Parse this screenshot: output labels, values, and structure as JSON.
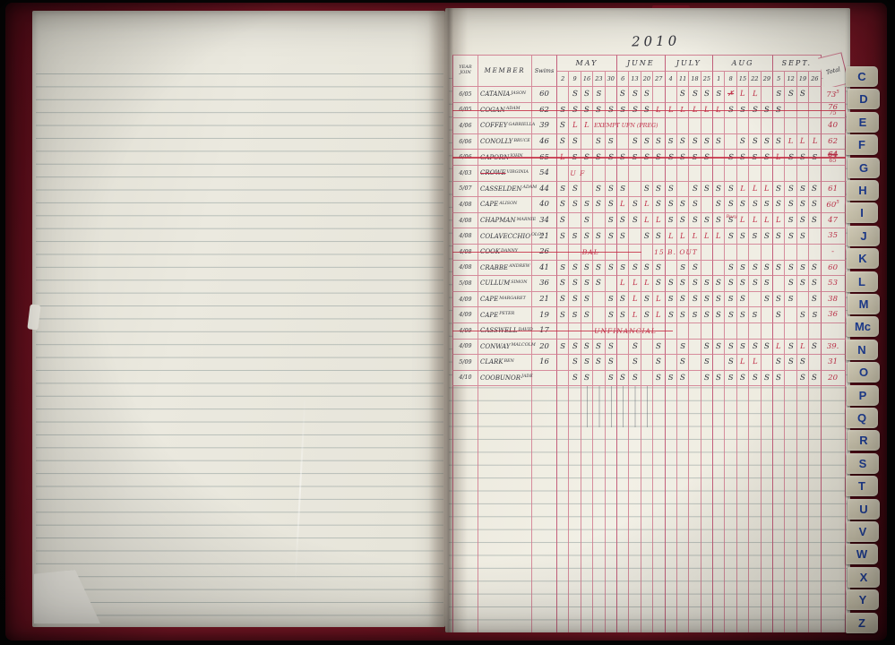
{
  "year_title": "2010",
  "ledger": {
    "col_headers": {
      "year_join_line1": "YEAR",
      "year_join_line2": "JOIN",
      "member": "MEMBER",
      "swims": "Swims",
      "total": "Total"
    },
    "months": [
      {
        "label": "MAY",
        "dates": [
          "2",
          "9",
          "16",
          "23",
          "30"
        ]
      },
      {
        "label": "JUNE",
        "dates": [
          "6",
          "13",
          "20",
          "27"
        ]
      },
      {
        "label": "JULY",
        "dates": [
          "4",
          "11",
          "18",
          "25"
        ]
      },
      {
        "label": "AUG",
        "dates": [
          "1",
          "8",
          "15",
          "22",
          "29"
        ]
      },
      {
        "label": "SEPT.",
        "dates": [
          "5",
          "12",
          "19",
          "26"
        ]
      }
    ],
    "ink_colors": {
      "pen": "#33343c",
      "red_ink": "#c1334b",
      "grid_pink": "#d17a8f"
    },
    "rows": [
      {
        "joined": "6/05",
        "surname": "CATANIA",
        "first_name": "JASON",
        "swims": "60",
        "marks": [
          "",
          "S",
          "S",
          "S",
          "",
          "S",
          "S",
          "S",
          "",
          "",
          "S",
          "S",
          "S",
          "S",
          "x",
          "L",
          "L",
          "",
          "S",
          "S",
          "S",
          ""
        ],
        "total": "73",
        "total_note": "5",
        "note_pos": "sup"
      },
      {
        "joined": "6/05",
        "surname": "COGAN",
        "first_name": "ADAM",
        "swims": "62",
        "marks": [
          "S",
          "S",
          "S",
          "S",
          "S",
          "S",
          "S",
          "S",
          "L",
          "L",
          "L",
          "L",
          "L",
          "L",
          "S",
          "S",
          "S",
          "S",
          "S",
          "",
          "",
          ""
        ],
        "total": "76",
        "total_note": "75",
        "note_pos": "below",
        "strike": [
          0,
          1
        ]
      },
      {
        "joined": "4/06",
        "surname": "COFFEY",
        "first_name": "GABRIELLA",
        "swims": "39",
        "marks": [
          "S",
          "L",
          "L",
          "",
          "",
          "",
          "",
          "",
          "",
          "",
          "",
          "",
          "",
          "",
          "",
          "",
          "",
          "",
          "",
          "",
          "",
          ""
        ],
        "total": "40",
        "annotations": [
          {
            "text": "EXEMPT UFN (PREG)",
            "col": 3,
            "span": 9
          }
        ]
      },
      {
        "joined": "6/06",
        "surname": "CONOLLY",
        "first_name": "BRUCE",
        "swims": "46",
        "marks": [
          "S",
          "S",
          "",
          "S",
          "S",
          "",
          "S",
          "S",
          "S",
          "S",
          "S",
          "S",
          "S",
          "S",
          "",
          "S",
          "S",
          "S",
          "S",
          "L",
          "L",
          "L"
        ],
        "total": "62"
      },
      {
        "joined": "6/06",
        "surname": "CAPORN",
        "first_name": "JOHN",
        "swims": "65",
        "marks": [
          "L",
          "S",
          "S",
          "S",
          "S",
          "S",
          "S",
          "S",
          "S",
          "S",
          "S",
          "S",
          "S",
          "",
          "S",
          "S",
          "S",
          "S",
          "L",
          "S",
          "S",
          "S"
        ],
        "total": "64",
        "total_note": "65",
        "note_pos": "below",
        "total_scribbled": true,
        "strike": [
          0,
          1
        ]
      },
      {
        "joined": "4/03",
        "surname": "CROWE",
        "first_name": "VIRGINIA",
        "swims": "54",
        "marks": [
          "",
          "",
          "",
          "",
          "",
          "",
          "",
          "",
          "",
          "",
          "",
          "",
          "",
          "",
          "",
          "",
          "",
          "",
          "",
          "",
          "",
          ""
        ],
        "total": "",
        "name_struck": true,
        "annotations": [
          {
            "text": "U F",
            "col": 1,
            "span": 3,
            "big": true
          }
        ]
      },
      {
        "joined": "5/07",
        "surname": "CASSELDEN",
        "first_name": "ADAM",
        "swims": "44",
        "marks": [
          "S",
          "S",
          "",
          "S",
          "S",
          "S",
          "",
          "S",
          "S",
          "S",
          "",
          "S",
          "S",
          "S",
          "S",
          "L",
          "L",
          "L",
          "S",
          "S",
          "S",
          "S"
        ],
        "total": "61"
      },
      {
        "joined": "4/08",
        "surname": "CAPE",
        "first_name": "ALISON",
        "swims": "40",
        "marks": [
          "S",
          "S",
          "S",
          "S",
          "S",
          "L",
          "S",
          "L",
          "S",
          "S",
          "S",
          "S",
          "",
          "S",
          "S",
          "S",
          "S",
          "S",
          "S",
          "S",
          "S",
          "S"
        ],
        "total": "60",
        "total_note": "5",
        "note_pos": "sup"
      },
      {
        "joined": "4/08",
        "surname": "CHAPMAN",
        "first_name": "MARNIE",
        "swims": "34",
        "marks": [
          "S",
          "",
          "S",
          "",
          "S",
          "S",
          "S",
          "L",
          "L",
          "S",
          "S",
          "S",
          "S",
          "S",
          "S",
          "L",
          "L",
          "L",
          "L",
          "S",
          "S",
          "S"
        ],
        "total": "47",
        "annotations": [
          {
            "text": "Busy",
            "col": 14,
            "span": 3,
            "tiny": true
          }
        ]
      },
      {
        "joined": "4/08",
        "surname": "COLAVECCHIO",
        "first_name": "OLGA",
        "swims": "21",
        "marks": [
          "S",
          "S",
          "S",
          "S",
          "S",
          "S",
          "",
          "S",
          "S",
          "L",
          "L",
          "L",
          "L",
          "L",
          "S",
          "S",
          "S",
          "S",
          "S",
          "S",
          "S",
          ""
        ],
        "total": "35"
      },
      {
        "joined": "4/08",
        "surname": "COOK",
        "first_name": "DANNY",
        "swims": "26",
        "marks": [
          "",
          "",
          "",
          "",
          "",
          "",
          "",
          "",
          "",
          "",
          "",
          "",
          "",
          "",
          "",
          "",
          "",
          "",
          "",
          "",
          "",
          ""
        ],
        "total": "-",
        "strike": [
          0,
          0.48
        ],
        "annotations": [
          {
            "text": "BAL",
            "col": 2,
            "span": 3,
            "struck": true,
            "big": true
          },
          {
            "text": "15 B. OUT",
            "col": 8,
            "span": 5,
            "big": true
          }
        ]
      },
      {
        "joined": "4/08",
        "surname": "CRABBE",
        "first_name": "ANDREW",
        "swims": "41",
        "marks": [
          "S",
          "S",
          "S",
          "S",
          "S",
          "S",
          "S",
          "S",
          "S",
          "",
          "S",
          "S",
          "",
          "",
          "S",
          "S",
          "S",
          "S",
          "S",
          "S",
          "S",
          "S"
        ],
        "total": "60"
      },
      {
        "joined": "5/08",
        "surname": "CULLUM",
        "first_name": "SIMON",
        "swims": "36",
        "marks": [
          "S",
          "S",
          "S",
          "S",
          "",
          "L",
          "L",
          "L",
          "S",
          "S",
          "S",
          "S",
          "S",
          "S",
          "S",
          "S",
          "S",
          "S",
          "",
          "S",
          "S",
          "S"
        ],
        "total": "53"
      },
      {
        "joined": "4/09",
        "surname": "CAPE",
        "first_name": "MARGARET",
        "swims": "21",
        "marks": [
          "S",
          "S",
          "S",
          "",
          "S",
          "S",
          "L",
          "S",
          "L",
          "S",
          "S",
          "S",
          "S",
          "S",
          "S",
          "S",
          "",
          "S",
          "S",
          "S",
          "",
          "S"
        ],
        "total": "38"
      },
      {
        "joined": "4/09",
        "surname": "CAPE",
        "first_name": "PETER",
        "swims": "19",
        "marks": [
          "S",
          "S",
          "S",
          "",
          "S",
          "S",
          "L",
          "S",
          "L",
          "S",
          "S",
          "S",
          "S",
          "S",
          "S",
          "S",
          "S",
          "",
          "S",
          "",
          "S",
          "S"
        ],
        "total": "36"
      },
      {
        "joined": "4/09",
        "surname": "CASSWELL",
        "first_name": "DAVID",
        "swims": "17",
        "marks": [
          "",
          "",
          "",
          "",
          "",
          "",
          "",
          "",
          "",
          "",
          "",
          "",
          "",
          "",
          "",
          "",
          "",
          "",
          "",
          "",
          "",
          ""
        ],
        "total": "",
        "strike": [
          0,
          0.56
        ],
        "annotations": [
          {
            "text": "UNFINANCIAL",
            "col": 3,
            "span": 7,
            "big": true
          }
        ]
      },
      {
        "joined": "4/09",
        "surname": "CONWAY",
        "first_name": "MALCOLM",
        "swims": "20",
        "marks": [
          "S",
          "S",
          "S",
          "S",
          "S",
          "",
          "S",
          "",
          "S",
          "",
          "S",
          "",
          "S",
          "S",
          "S",
          "S",
          "S",
          "S",
          "L",
          "S",
          "L",
          "S"
        ],
        "total": "39."
      },
      {
        "joined": "5/09",
        "surname": "CLARK",
        "first_name": "BEN",
        "swims": "16",
        "marks": [
          "",
          "S",
          "S",
          "S",
          "S",
          "",
          "S",
          "",
          "S",
          "",
          "S",
          "",
          "S",
          "",
          "S",
          "L",
          "L",
          "",
          "S",
          "S",
          "S",
          ""
        ],
        "total": "31"
      },
      {
        "joined": "4/10",
        "surname": "COOBUNOR",
        "first_name": "JADE",
        "swims": "",
        "marks": [
          "",
          "S",
          "S",
          "",
          "S",
          "S",
          "S",
          "",
          "S",
          "S",
          "S",
          "",
          "S",
          "S",
          "S",
          "S",
          "S",
          "S",
          "S",
          "",
          "S",
          "S"
        ],
        "total": "20"
      }
    ]
  },
  "index_tabs": [
    "C",
    "D",
    "E",
    "F",
    "G",
    "H",
    "I",
    "J",
    "K",
    "L",
    "M",
    "Mc",
    "N",
    "O",
    "P",
    "Q",
    "R",
    "S",
    "T",
    "U",
    "V",
    "W",
    "X",
    "Y",
    "Z"
  ]
}
